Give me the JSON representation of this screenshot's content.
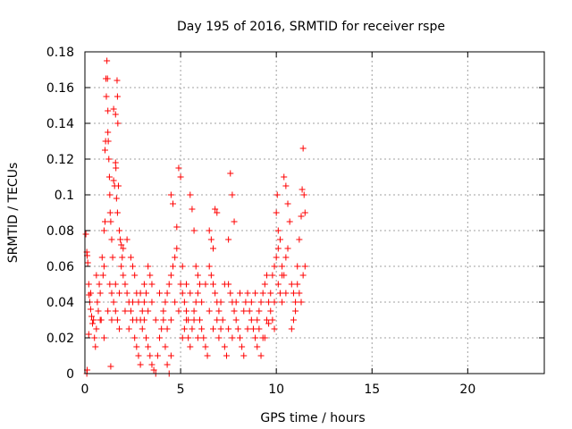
{
  "chart_data": {
    "type": "scatter",
    "title": "Day 195 of 2016, SRMTID for receiver rspe",
    "xlabel": "GPS time / hours",
    "ylabel": "SRMTID / TECUs",
    "xlim": [
      0,
      24
    ],
    "ylim": [
      0,
      0.18
    ],
    "x_ticks": [
      0,
      5,
      10,
      15,
      20
    ],
    "x_tick_labels": [
      "0",
      "5",
      "10",
      "15",
      "20"
    ],
    "y_ticks": [
      0,
      0.02,
      0.04,
      0.06,
      0.08,
      0.1,
      0.12,
      0.14,
      0.16,
      0.18
    ],
    "y_tick_labels": [
      "0",
      "0.02",
      "0.04",
      "0.06",
      "0.08",
      "0.1",
      "0.12",
      "0.14",
      "0.16",
      "0.18"
    ],
    "grid": true,
    "marker": "+",
    "color": "#ff0000",
    "series": [
      {
        "name": "SRMTID",
        "points": [
          [
            0.05,
            0.078
          ],
          [
            0.1,
            0.068
          ],
          [
            0.12,
            0.066
          ],
          [
            0.15,
            0.062
          ],
          [
            0.2,
            0.05
          ],
          [
            0.22,
            0.044
          ],
          [
            0.25,
            0.04
          ],
          [
            0.3,
            0.036
          ],
          [
            0.35,
            0.032
          ],
          [
            0.4,
            0.028
          ],
          [
            0.1,
            0.0
          ],
          [
            0.12,
            0.002
          ],
          [
            0.2,
            0.022
          ],
          [
            0.3,
            0.045
          ],
          [
            0.45,
            0.03
          ],
          [
            0.5,
            0.02
          ],
          [
            0.55,
            0.015
          ],
          [
            0.6,
            0.025
          ],
          [
            0.65,
            0.04
          ],
          [
            0.7,
            0.035
          ],
          [
            0.75,
            0.05
          ],
          [
            0.8,
            0.045
          ],
          [
            0.85,
            0.03
          ],
          [
            0.9,
            0.065
          ],
          [
            0.95,
            0.055
          ],
          [
            1.0,
            0.06
          ],
          [
            1.0,
            0.08
          ],
          [
            1.05,
            0.085
          ],
          [
            1.05,
            0.125
          ],
          [
            1.08,
            0.13
          ],
          [
            1.1,
            0.165
          ],
          [
            1.12,
            0.155
          ],
          [
            1.15,
            0.175
          ],
          [
            1.18,
            0.165
          ],
          [
            1.2,
            0.147
          ],
          [
            1.2,
            0.135
          ],
          [
            1.22,
            0.13
          ],
          [
            1.25,
            0.12
          ],
          [
            1.28,
            0.11
          ],
          [
            1.3,
            0.1
          ],
          [
            1.32,
            0.09
          ],
          [
            1.35,
            0.085
          ],
          [
            1.4,
            0.075
          ],
          [
            1.45,
            0.065
          ],
          [
            1.5,
            0.108
          ],
          [
            1.55,
            0.105
          ],
          [
            1.6,
            0.118
          ],
          [
            1.62,
            0.115
          ],
          [
            1.65,
            0.098
          ],
          [
            1.7,
            0.09
          ],
          [
            1.5,
            0.148
          ],
          [
            1.6,
            0.145
          ],
          [
            1.68,
            0.164
          ],
          [
            1.7,
            0.155
          ],
          [
            1.72,
            0.14
          ],
          [
            1.75,
            0.105
          ],
          [
            1.8,
            0.08
          ],
          [
            1.85,
            0.075
          ],
          [
            1.9,
            0.072
          ],
          [
            1.95,
            0.065
          ],
          [
            1.3,
            0.05
          ],
          [
            1.4,
            0.045
          ],
          [
            1.5,
            0.04
          ],
          [
            1.6,
            0.035
          ],
          [
            1.7,
            0.03
          ],
          [
            1.8,
            0.025
          ],
          [
            1.35,
            0.004
          ],
          [
            1.9,
            0.06
          ],
          [
            2.0,
            0.055
          ],
          [
            2.1,
            0.05
          ],
          [
            2.2,
            0.045
          ],
          [
            2.3,
            0.04
          ],
          [
            2.4,
            0.035
          ],
          [
            2.5,
            0.03
          ],
          [
            2.0,
            0.07
          ],
          [
            2.2,
            0.075
          ],
          [
            2.4,
            0.065
          ],
          [
            2.5,
            0.06
          ],
          [
            2.6,
            0.055
          ],
          [
            2.7,
            0.045
          ],
          [
            2.8,
            0.04
          ],
          [
            2.9,
            0.03
          ],
          [
            3.0,
            0.025
          ],
          [
            2.6,
            0.02
          ],
          [
            2.7,
            0.015
          ],
          [
            2.8,
            0.01
          ],
          [
            2.9,
            0.005
          ],
          [
            3.0,
            0.035
          ],
          [
            3.1,
            0.04
          ],
          [
            3.2,
            0.045
          ],
          [
            3.3,
            0.06
          ],
          [
            3.4,
            0.055
          ],
          [
            3.5,
            0.05
          ],
          [
            3.1,
            0.03
          ],
          [
            3.2,
            0.02
          ],
          [
            3.3,
            0.015
          ],
          [
            3.4,
            0.01
          ],
          [
            3.5,
            0.005
          ],
          [
            3.6,
            0.002
          ],
          [
            3.7,
            0.0
          ],
          [
            3.8,
            0.01
          ],
          [
            3.9,
            0.02
          ],
          [
            4.0,
            0.025
          ],
          [
            4.1,
            0.03
          ],
          [
            4.2,
            0.015
          ],
          [
            4.3,
            0.005
          ],
          [
            4.4,
            0.0
          ],
          [
            4.5,
            0.01
          ],
          [
            4.2,
            0.04
          ],
          [
            4.3,
            0.045
          ],
          [
            4.4,
            0.05
          ],
          [
            4.5,
            0.055
          ],
          [
            4.6,
            0.06
          ],
          [
            4.7,
            0.065
          ],
          [
            4.8,
            0.07
          ],
          [
            4.9,
            0.115
          ],
          [
            5.0,
            0.11
          ],
          [
            4.5,
            0.1
          ],
          [
            4.6,
            0.095
          ],
          [
            4.8,
            0.082
          ],
          [
            5.0,
            0.05
          ],
          [
            5.1,
            0.045
          ],
          [
            5.2,
            0.04
          ],
          [
            5.3,
            0.035
          ],
          [
            5.4,
            0.03
          ],
          [
            5.5,
            0.1
          ],
          [
            5.6,
            0.092
          ],
          [
            5.7,
            0.08
          ],
          [
            5.8,
            0.06
          ],
          [
            5.9,
            0.055
          ],
          [
            5.1,
            0.02
          ],
          [
            5.2,
            0.025
          ],
          [
            5.3,
            0.03
          ],
          [
            5.4,
            0.02
          ],
          [
            5.5,
            0.015
          ],
          [
            5.6,
            0.025
          ],
          [
            5.7,
            0.035
          ],
          [
            5.8,
            0.04
          ],
          [
            5.9,
            0.045
          ],
          [
            6.0,
            0.05
          ],
          [
            6.0,
            0.03
          ],
          [
            6.1,
            0.025
          ],
          [
            6.2,
            0.02
          ],
          [
            6.3,
            0.015
          ],
          [
            6.4,
            0.01
          ],
          [
            6.5,
            0.08
          ],
          [
            6.6,
            0.075
          ],
          [
            6.7,
            0.07
          ],
          [
            6.8,
            0.092
          ],
          [
            6.9,
            0.09
          ],
          [
            6.5,
            0.06
          ],
          [
            6.6,
            0.055
          ],
          [
            6.7,
            0.05
          ],
          [
            6.8,
            0.045
          ],
          [
            6.9,
            0.04
          ],
          [
            7.0,
            0.035
          ],
          [
            7.0,
            0.02
          ],
          [
            7.1,
            0.025
          ],
          [
            7.2,
            0.03
          ],
          [
            7.3,
            0.015
          ],
          [
            7.4,
            0.01
          ],
          [
            7.5,
            0.075
          ],
          [
            7.6,
            0.112
          ],
          [
            7.7,
            0.1
          ],
          [
            7.8,
            0.085
          ],
          [
            7.5,
            0.05
          ],
          [
            7.6,
            0.045
          ],
          [
            7.7,
            0.04
          ],
          [
            7.8,
            0.035
          ],
          [
            7.9,
            0.03
          ],
          [
            8.0,
            0.025
          ],
          [
            8.1,
            0.02
          ],
          [
            8.2,
            0.015
          ],
          [
            8.3,
            0.01
          ],
          [
            8.4,
            0.04
          ],
          [
            8.5,
            0.045
          ],
          [
            8.6,
            0.035
          ],
          [
            8.7,
            0.03
          ],
          [
            8.8,
            0.025
          ],
          [
            8.9,
            0.02
          ],
          [
            9.0,
            0.03
          ],
          [
            9.1,
            0.035
          ],
          [
            9.2,
            0.04
          ],
          [
            9.3,
            0.045
          ],
          [
            9.4,
            0.05
          ],
          [
            9.5,
            0.055
          ],
          [
            9.6,
            0.04
          ],
          [
            9.7,
            0.035
          ],
          [
            9.8,
            0.03
          ],
          [
            9.9,
            0.025
          ],
          [
            9.0,
            0.015
          ],
          [
            9.2,
            0.01
          ],
          [
            9.4,
            0.02
          ],
          [
            9.6,
            0.028
          ],
          [
            9.8,
            0.055
          ],
          [
            9.9,
            0.06
          ],
          [
            10.0,
            0.065
          ],
          [
            10.0,
            0.09
          ],
          [
            10.05,
            0.1
          ],
          [
            10.1,
            0.08
          ],
          [
            10.1,
            0.07
          ],
          [
            10.2,
            0.075
          ],
          [
            10.3,
            0.06
          ],
          [
            10.4,
            0.055
          ],
          [
            10.5,
            0.065
          ],
          [
            10.6,
            0.07
          ],
          [
            10.4,
            0.11
          ],
          [
            10.5,
            0.105
          ],
          [
            10.6,
            0.095
          ],
          [
            10.7,
            0.085
          ],
          [
            10.8,
            0.05
          ],
          [
            10.9,
            0.045
          ],
          [
            11.0,
            0.04
          ],
          [
            10.8,
            0.025
          ],
          [
            10.9,
            0.03
          ],
          [
            11.0,
            0.035
          ],
          [
            11.1,
            0.06
          ],
          [
            11.2,
            0.075
          ],
          [
            11.3,
            0.088
          ],
          [
            11.35,
            0.103
          ],
          [
            11.4,
            0.126
          ],
          [
            11.45,
            0.1
          ],
          [
            11.5,
            0.09
          ],
          [
            11.1,
            0.05
          ],
          [
            11.2,
            0.045
          ],
          [
            11.3,
            0.04
          ],
          [
            11.4,
            0.055
          ],
          [
            11.5,
            0.06
          ],
          [
            10.2,
            0.045
          ],
          [
            10.3,
            0.04
          ],
          [
            0.6,
            0.055
          ],
          [
            0.8,
            0.03
          ],
          [
            1.0,
            0.02
          ],
          [
            1.2,
            0.035
          ],
          [
            1.4,
            0.03
          ],
          [
            1.6,
            0.05
          ],
          [
            1.8,
            0.045
          ],
          [
            2.1,
            0.035
          ],
          [
            2.3,
            0.025
          ],
          [
            2.5,
            0.04
          ],
          [
            2.7,
            0.03
          ],
          [
            2.9,
            0.045
          ],
          [
            3.1,
            0.05
          ],
          [
            3.3,
            0.035
          ],
          [
            3.5,
            0.04
          ],
          [
            3.7,
            0.03
          ],
          [
            3.9,
            0.045
          ],
          [
            4.1,
            0.035
          ],
          [
            4.3,
            0.025
          ],
          [
            4.5,
            0.03
          ],
          [
            4.7,
            0.04
          ],
          [
            4.9,
            0.035
          ],
          [
            5.1,
            0.06
          ],
          [
            5.3,
            0.05
          ],
          [
            5.5,
            0.045
          ],
          [
            5.7,
            0.03
          ],
          [
            5.9,
            0.02
          ],
          [
            6.1,
            0.04
          ],
          [
            6.3,
            0.05
          ],
          [
            6.5,
            0.035
          ],
          [
            6.7,
            0.025
          ],
          [
            6.9,
            0.03
          ],
          [
            7.1,
            0.04
          ],
          [
            7.3,
            0.05
          ],
          [
            7.5,
            0.025
          ],
          [
            7.7,
            0.02
          ],
          [
            7.9,
            0.04
          ],
          [
            8.1,
            0.045
          ],
          [
            8.3,
            0.035
          ],
          [
            8.5,
            0.025
          ],
          [
            8.7,
            0.04
          ],
          [
            8.9,
            0.045
          ],
          [
            9.1,
            0.025
          ],
          [
            9.3,
            0.02
          ],
          [
            9.5,
            0.03
          ],
          [
            9.7,
            0.045
          ],
          [
            9.9,
            0.04
          ],
          [
            10.1,
            0.05
          ],
          [
            10.3,
            0.055
          ],
          [
            10.5,
            0.045
          ]
        ]
      }
    ]
  }
}
